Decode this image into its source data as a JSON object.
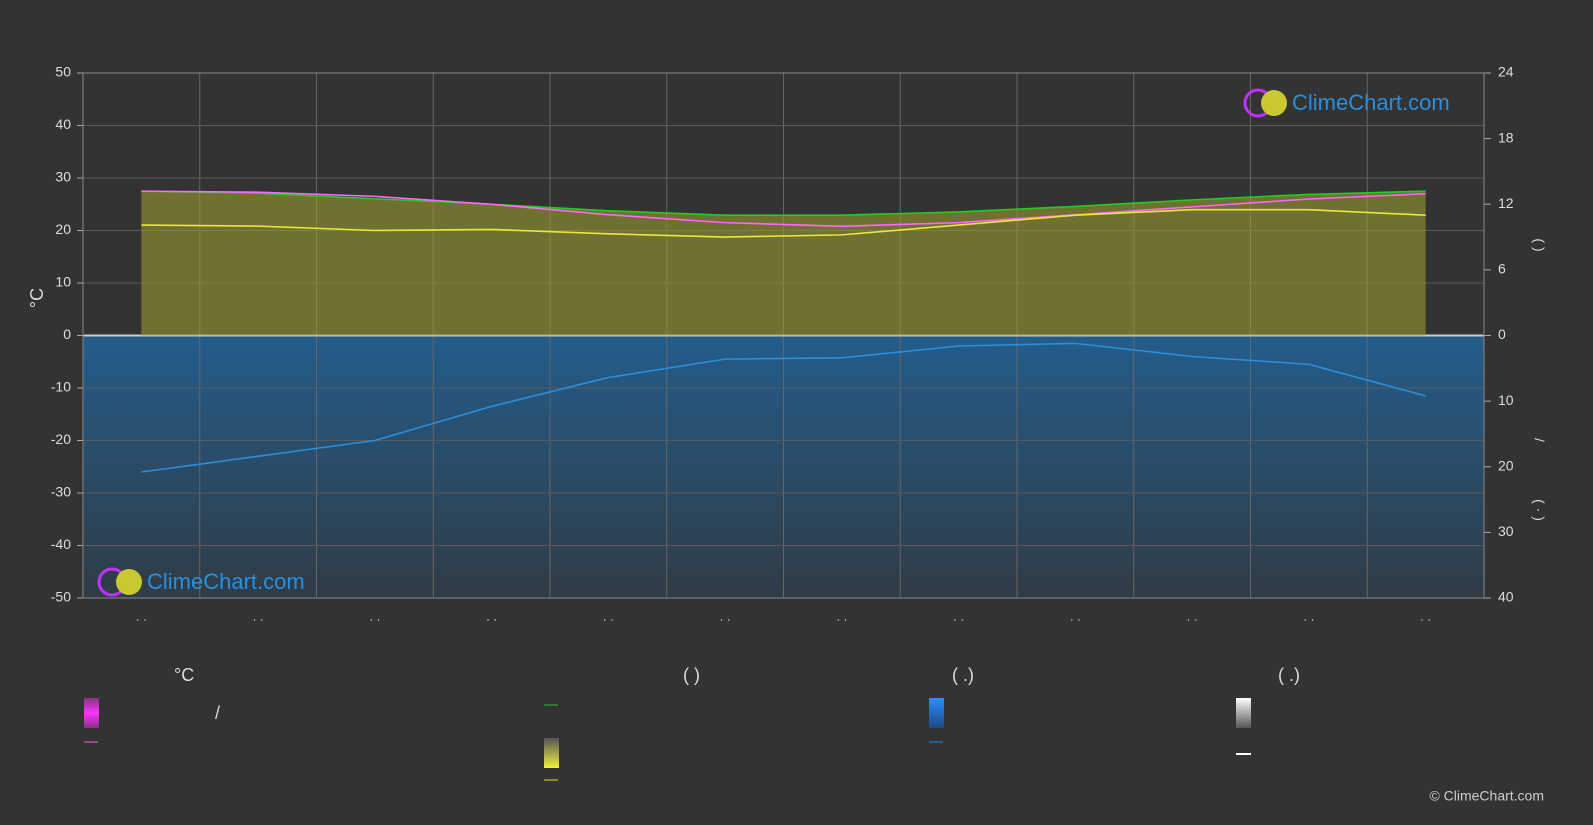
{
  "chart_data": {
    "type": "line",
    "y_label": "°C",
    "categories": [
      "· ·",
      "· ·",
      "· ·",
      "· ·",
      "· ·",
      "· ·",
      "· ·",
      "· ·",
      "· ·",
      "· ·",
      "· ·",
      "· ·"
    ],
    "ylim": [
      -50,
      50
    ],
    "yticks": [
      -50,
      -40,
      -30,
      -20,
      -10,
      0,
      10,
      20,
      30,
      40,
      50
    ],
    "y2lim": [
      0,
      24
    ],
    "y2ticks": [
      0,
      6,
      12,
      18,
      24
    ],
    "y3lim": [
      0,
      40
    ],
    "y3ticks": [
      10,
      20,
      30,
      40
    ],
    "y2_label": "(   )",
    "y3_label": [
      "/",
      "( · )"
    ],
    "grid": true,
    "series": [
      {
        "name": "—",
        "color": "#22cc22",
        "axis": "y2",
        "values": [
          13.2,
          13.0,
          12.5,
          12.0,
          11.4,
          11.0,
          11.0,
          11.3,
          11.8,
          12.4,
          12.9,
          13.2
        ]
      },
      {
        "name": "—",
        "color": "#ff66ff",
        "axis": "y",
        "values": [
          27.5,
          27.3,
          26.5,
          25.0,
          23.0,
          21.5,
          20.8,
          21.5,
          23.0,
          24.5,
          26.0,
          27.0
        ]
      },
      {
        "name": "—",
        "color": "#e8e83a",
        "axis": "y2",
        "values": [
          10.1,
          10.0,
          9.6,
          9.7,
          9.3,
          9.0,
          9.2,
          10.1,
          11.0,
          11.5,
          11.5,
          11.0
        ]
      },
      {
        "name": "—",
        "color": "#2a8fdc",
        "axis": "y3",
        "values": [
          20.8,
          18.4,
          16.0,
          10.8,
          6.4,
          3.6,
          3.4,
          1.6,
          1.2,
          3.2,
          4.4,
          9.2
        ]
      }
    ],
    "legend": {
      "headers": [
        "°C",
        "(          )",
        "(   .)",
        "(   .)"
      ],
      "slash": "/"
    },
    "watermark": "ClimeChart.com",
    "copyright": "© ClimeChart.com"
  }
}
